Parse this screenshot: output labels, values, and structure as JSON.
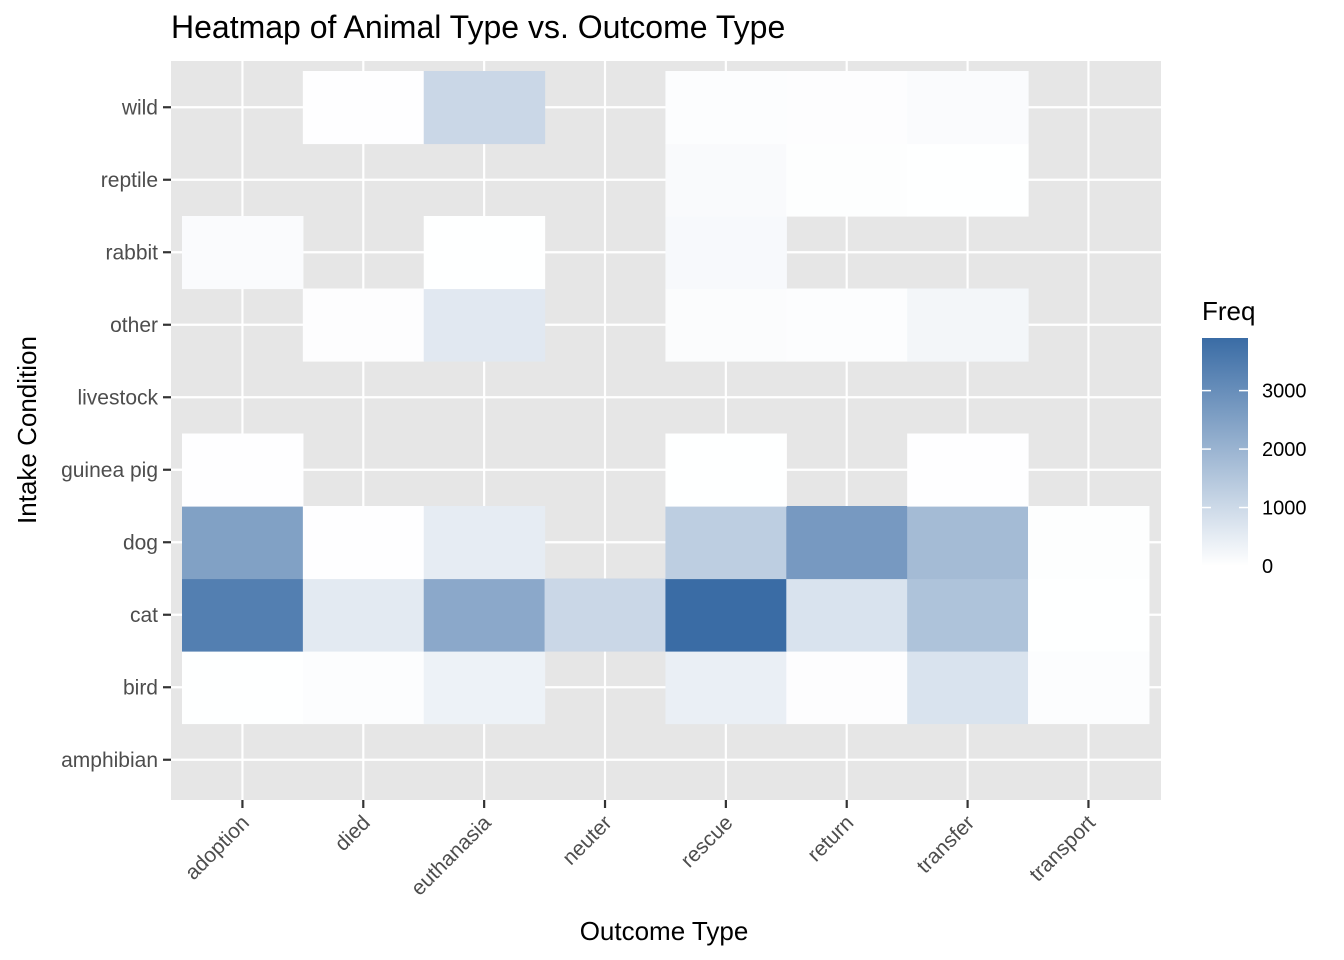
{
  "chart_data": {
    "type": "heatmap",
    "title": "Heatmap of Animal Type vs. Outcome Type",
    "xlabel": "Outcome Type",
    "ylabel": "Intake Condition",
    "x_categories": [
      "adoption",
      "died",
      "euthanasia",
      "neuter",
      "rescue",
      "return",
      "transfer",
      "transport"
    ],
    "y_categories": [
      "amphibian",
      "bird",
      "cat",
      "dog",
      "guinea pig",
      "livestock",
      "other",
      "rabbit",
      "reptile",
      "wild"
    ],
    "values": [
      [
        null,
        null,
        null,
        null,
        null,
        null,
        null,
        null
      ],
      [
        10,
        60,
        350,
        null,
        420,
        40,
        750,
        60
      ],
      [
        3400,
        550,
        2300,
        1050,
        3900,
        750,
        1600,
        10
      ],
      [
        2500,
        20,
        500,
        null,
        1300,
        2700,
        1800,
        30
      ],
      [
        20,
        null,
        null,
        null,
        10,
        null,
        20,
        null
      ],
      [
        null,
        null,
        null,
        null,
        null,
        null,
        null,
        null
      ],
      [
        null,
        40,
        600,
        null,
        80,
        50,
        240,
        null
      ],
      [
        100,
        null,
        10,
        null,
        150,
        null,
        null,
        null
      ],
      [
        null,
        null,
        null,
        null,
        120,
        30,
        10,
        null
      ],
      [
        null,
        20,
        1050,
        null,
        60,
        40,
        100,
        null
      ]
    ],
    "color_scale": {
      "low": "#ffffff",
      "high": "#3a6ca5",
      "min": 0,
      "max": 3900
    },
    "legend": {
      "title": "Freq",
      "ticks": [
        0,
        1000,
        2000,
        3000
      ],
      "position": "right"
    },
    "panel_background": "#e6e6e6",
    "grid": true
  }
}
